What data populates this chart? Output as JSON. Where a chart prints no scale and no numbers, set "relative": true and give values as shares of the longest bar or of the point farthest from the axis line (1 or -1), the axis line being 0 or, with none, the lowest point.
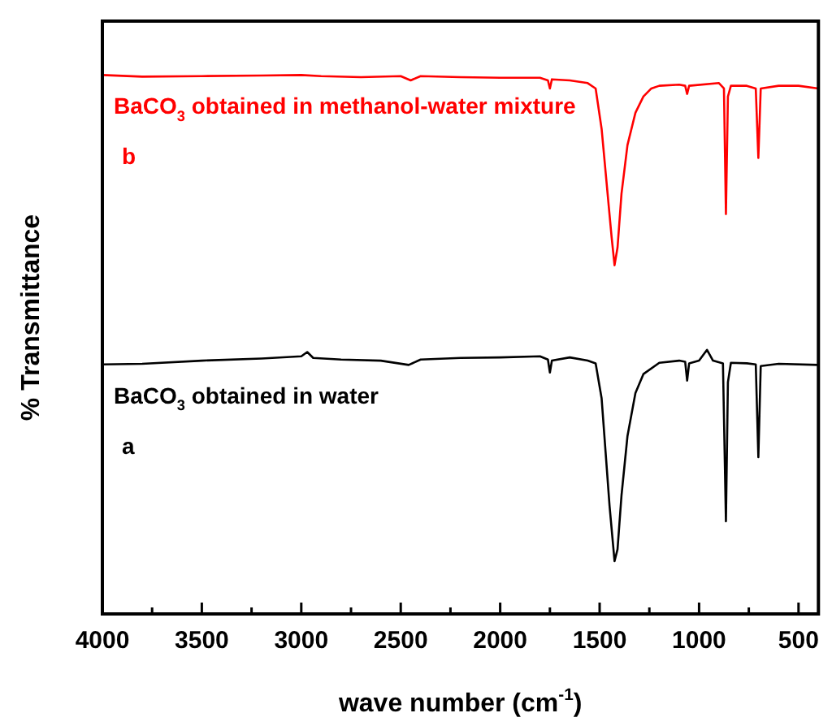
{
  "chart_data": {
    "type": "line",
    "relative": true,
    "xlabel": "wave number (cm$^{-1}$)",
    "ylabel": "% Transmittance",
    "xlim": [
      4000,
      400
    ],
    "xticks": [
      4000,
      {
        "value": 3750,
        "label": null
      },
      3500,
      {
        "value": 3250,
        "label": null
      },
      3000,
      {
        "value": 2750,
        "label": null
      },
      2500,
      {
        "value": 2250,
        "label": null
      },
      2000,
      {
        "value": 1750,
        "label": null
      },
      1500,
      {
        "value": 1250,
        "label": null
      },
      1000,
      {
        "value": 750,
        "label": null
      },
      500
    ],
    "marker": "none",
    "legend": false,
    "series": [
      {
        "name": "BaCO$_{3}$ obtained in methanol-water mixture",
        "color": "#ff0000",
        "x": [
          4000,
          3800,
          3500,
          3200,
          3000,
          2900,
          2700,
          2500,
          2450,
          2400,
          2200,
          2000,
          1800,
          1760,
          1750,
          1740,
          1650,
          1560,
          1520,
          1490,
          1460,
          1440,
          1425,
          1410,
          1390,
          1360,
          1320,
          1280,
          1240,
          1200,
          1100,
          1070,
          1060,
          1050,
          900,
          875,
          865,
          855,
          840,
          760,
          715,
          702,
          690,
          600,
          500,
          400
        ],
        "values": [
          1,
          0.997,
          0.998,
          0.999,
          1,
          0.998,
          0.996,
          0.998,
          0.99,
          0.998,
          0.996,
          0.995,
          0.995,
          0.99,
          0.975,
          0.992,
          0.99,
          0.985,
          0.975,
          0.9,
          0.78,
          0.7,
          0.647,
          0.68,
          0.78,
          0.87,
          0.93,
          0.96,
          0.975,
          0.98,
          0.982,
          0.98,
          0.965,
          0.98,
          0.985,
          0.975,
          0.742,
          0.96,
          0.98,
          0.98,
          0.975,
          0.846,
          0.975,
          0.98,
          0.98,
          0.975
        ]
      },
      {
        "name": "BaCO$_{3}$ obtained in water",
        "color": "#000000",
        "x": [
          4000,
          3800,
          3500,
          3200,
          3000,
          2970,
          2940,
          2800,
          2600,
          2460,
          2400,
          2200,
          2000,
          1800,
          1760,
          1750,
          1740,
          1650,
          1560,
          1520,
          1490,
          1470,
          1450,
          1425,
          1410,
          1390,
          1360,
          1320,
          1280,
          1200,
          1100,
          1070,
          1060,
          1050,
          1000,
          960,
          930,
          880,
          865,
          855,
          840,
          760,
          715,
          702,
          690,
          600,
          400
        ],
        "values": [
          0.463,
          0.464,
          0.47,
          0.474,
          0.478,
          0.486,
          0.475,
          0.472,
          0.47,
          0.462,
          0.472,
          0.475,
          0.476,
          0.478,
          0.472,
          0.448,
          0.47,
          0.476,
          0.47,
          0.465,
          0.4,
          0.3,
          0.2,
          0.098,
          0.12,
          0.22,
          0.33,
          0.41,
          0.445,
          0.466,
          0.47,
          0.468,
          0.433,
          0.465,
          0.47,
          0.49,
          0.47,
          0.465,
          0.172,
          0.43,
          0.466,
          0.465,
          0.463,
          0.291,
          0.46,
          0.464,
          0.462
        ]
      }
    ],
    "annotations": [
      "b",
      "a"
    ]
  }
}
